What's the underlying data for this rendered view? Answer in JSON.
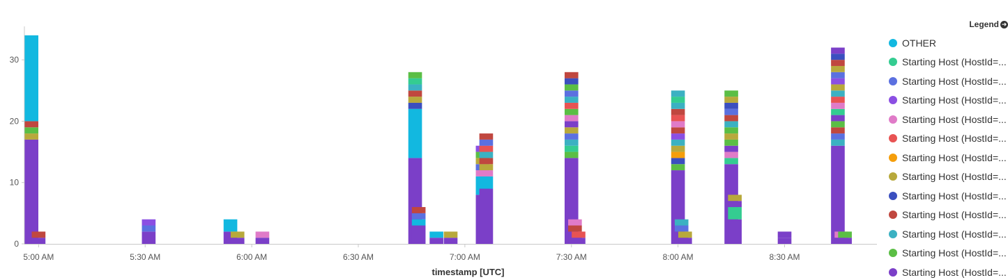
{
  "chart_data": {
    "type": "bar",
    "stacked": true,
    "xlabel": "timestamp [UTC]",
    "ylabel": "",
    "ylim": [
      0,
      35
    ],
    "yticks": [
      0,
      10,
      20,
      30
    ],
    "x_ticks": [
      {
        "label": "5:00 AM",
        "t": 300
      },
      {
        "label": "5:30 AM",
        "t": 330
      },
      {
        "label": "6:00 AM",
        "t": 360
      },
      {
        "label": "6:30 AM",
        "t": 390
      },
      {
        "label": "7:00 AM",
        "t": 420
      },
      {
        "label": "7:30 AM",
        "t": 450
      },
      {
        "label": "8:00 AM",
        "t": 480
      },
      {
        "label": "8:30 AM",
        "t": 510
      }
    ],
    "xlim": [
      296,
      536
    ],
    "grid": false,
    "legend_position": "right",
    "legend": {
      "title": "Legend",
      "items": [
        {
          "label": "OTHER",
          "color": "#12B8E0"
        },
        {
          "label": "Starting Host (HostId=...",
          "color": "#34CC91"
        },
        {
          "label": "Starting Host (HostId=...",
          "color": "#5B70E0"
        },
        {
          "label": "Starting Host (HostId=...",
          "color": "#8B4FE3"
        },
        {
          "label": "Starting Host (HostId=...",
          "color": "#E07BC8"
        },
        {
          "label": "Starting Host (HostId=...",
          "color": "#E85353"
        },
        {
          "label": "Starting Host (HostId=...",
          "color": "#F59E0B"
        },
        {
          "label": "Starting Host (HostId=...",
          "color": "#B8A93C"
        },
        {
          "label": "Starting Host (HostId=...",
          "color": "#3B4FBF"
        },
        {
          "label": "Starting Host (HostId=...",
          "color": "#C0473F"
        },
        {
          "label": "Starting Host (HostId=...",
          "color": "#3BB1C2"
        },
        {
          "label": "Starting Host (HostId=...",
          "color": "#5BBE45"
        },
        {
          "label": "Starting Host (HostId=...",
          "color": "#7B3FC8"
        }
      ]
    },
    "bars": [
      {
        "t": 298,
        "segments": [
          {
            "v": 17,
            "c": 12
          },
          {
            "v": 1,
            "c": 7
          },
          {
            "v": 1,
            "c": 11
          },
          {
            "v": 1,
            "c": 9
          },
          {
            "v": 14,
            "c": 0
          }
        ]
      },
      {
        "t": 300,
        "segments": [
          {
            "v": 1,
            "c": 12
          },
          {
            "v": 1,
            "c": 9
          }
        ]
      },
      {
        "t": 331,
        "segments": [
          {
            "v": 2,
            "c": 12
          },
          {
            "v": 1,
            "c": 2
          },
          {
            "v": 1,
            "c": 3
          }
        ]
      },
      {
        "t": 354,
        "segments": [
          {
            "v": 2,
            "c": 12
          },
          {
            "v": 2,
            "c": 0
          }
        ]
      },
      {
        "t": 356,
        "segments": [
          {
            "v": 1,
            "c": 12
          },
          {
            "v": 1,
            "c": 7
          }
        ]
      },
      {
        "t": 363,
        "segments": [
          {
            "v": 1,
            "c": 12
          },
          {
            "v": 1,
            "c": 4
          }
        ]
      },
      {
        "t": 406,
        "segments": [
          {
            "v": 14,
            "c": 12
          },
          {
            "v": 8,
            "c": 0
          },
          {
            "v": 1,
            "c": 8
          },
          {
            "v": 1,
            "c": 7
          },
          {
            "v": 1,
            "c": 9
          },
          {
            "v": 1,
            "c": 10
          },
          {
            "v": 1,
            "c": 1
          },
          {
            "v": 1,
            "c": 11
          }
        ]
      },
      {
        "t": 407,
        "segments": [
          {
            "v": 3,
            "c": 12
          },
          {
            "v": 1,
            "c": 0
          },
          {
            "v": 1,
            "c": 2
          },
          {
            "v": 1,
            "c": 9
          }
        ]
      },
      {
        "t": 412,
        "segments": [
          {
            "v": 1,
            "c": 12
          },
          {
            "v": 1,
            "c": 0
          }
        ]
      },
      {
        "t": 416,
        "segments": [
          {
            "v": 1,
            "c": 12
          },
          {
            "v": 1,
            "c": 7
          }
        ]
      },
      {
        "t": 425,
        "segments": [
          {
            "v": 8,
            "c": 12
          },
          {
            "v": 3,
            "c": 0
          },
          {
            "v": 1,
            "c": 4
          },
          {
            "v": 1,
            "c": 2
          },
          {
            "v": 1,
            "c": 7
          },
          {
            "v": 1,
            "c": 11
          },
          {
            "v": 1,
            "c": 3
          }
        ]
      },
      {
        "t": 426,
        "segments": [
          {
            "v": 9,
            "c": 12
          },
          {
            "v": 2,
            "c": 0
          },
          {
            "v": 1,
            "c": 4
          },
          {
            "v": 1,
            "c": 7
          },
          {
            "v": 1,
            "c": 9
          },
          {
            "v": 1,
            "c": 10
          },
          {
            "v": 1,
            "c": 5
          },
          {
            "v": 1,
            "c": 2
          },
          {
            "v": 1,
            "c": 9
          }
        ]
      },
      {
        "t": 450,
        "segments": [
          {
            "v": 14,
            "c": 12
          },
          {
            "v": 1,
            "c": 11
          },
          {
            "v": 1,
            "c": 1
          },
          {
            "v": 1,
            "c": 10
          },
          {
            "v": 1,
            "c": 2
          },
          {
            "v": 1,
            "c": 7
          },
          {
            "v": 1,
            "c": 12
          },
          {
            "v": 1,
            "c": 4
          },
          {
            "v": 1,
            "c": 11
          },
          {
            "v": 1,
            "c": 5
          },
          {
            "v": 1,
            "c": 10
          },
          {
            "v": 1,
            "c": 2
          },
          {
            "v": 1,
            "c": 11
          },
          {
            "v": 1,
            "c": 8
          },
          {
            "v": 1,
            "c": 9
          }
        ]
      },
      {
        "t": 451,
        "segments": [
          {
            "v": 2,
            "c": 12
          },
          {
            "v": 1,
            "c": 9
          },
          {
            "v": 1,
            "c": 4
          }
        ]
      },
      {
        "t": 452,
        "segments": [
          {
            "v": 1,
            "c": 12
          },
          {
            "v": 1,
            "c": 5
          }
        ]
      },
      {
        "t": 480,
        "segments": [
          {
            "v": 12,
            "c": 12
          },
          {
            "v": 1,
            "c": 11
          },
          {
            "v": 1,
            "c": 8
          },
          {
            "v": 1,
            "c": 6
          },
          {
            "v": 1,
            "c": 7
          },
          {
            "v": 1,
            "c": 10
          },
          {
            "v": 1,
            "c": 3
          },
          {
            "v": 1,
            "c": 9
          },
          {
            "v": 1,
            "c": 4
          },
          {
            "v": 1,
            "c": 5
          },
          {
            "v": 1,
            "c": 9
          },
          {
            "v": 1,
            "c": 10
          },
          {
            "v": 1,
            "c": 1
          },
          {
            "v": 1,
            "c": 10
          }
        ]
      },
      {
        "t": 481,
        "segments": [
          {
            "v": 2,
            "c": 12
          },
          {
            "v": 1,
            "c": 2
          },
          {
            "v": 1,
            "c": 10
          }
        ]
      },
      {
        "t": 482,
        "segments": [
          {
            "v": 1,
            "c": 12
          },
          {
            "v": 1,
            "c": 7
          }
        ]
      },
      {
        "t": 495,
        "segments": [
          {
            "v": 13,
            "c": 12
          },
          {
            "v": 1,
            "c": 1
          },
          {
            "v": 1,
            "c": 4
          },
          {
            "v": 1,
            "c": 12
          },
          {
            "v": 1,
            "c": 11
          },
          {
            "v": 1,
            "c": 7
          },
          {
            "v": 1,
            "c": 11
          },
          {
            "v": 1,
            "c": 10
          },
          {
            "v": 1,
            "c": 9
          },
          {
            "v": 1,
            "c": 2
          },
          {
            "v": 1,
            "c": 8
          },
          {
            "v": 1,
            "c": 7
          },
          {
            "v": 1,
            "c": 11
          }
        ]
      },
      {
        "t": 496,
        "segments": [
          {
            "v": 4,
            "c": 12
          },
          {
            "v": 2,
            "c": 1
          },
          {
            "v": 1,
            "c": 12
          },
          {
            "v": 1,
            "c": 7
          }
        ]
      },
      {
        "t": 510,
        "segments": [
          {
            "v": 1,
            "c": 12
          },
          {
            "v": 1,
            "c": 12
          }
        ]
      },
      {
        "t": 525,
        "segments": [
          {
            "v": 16,
            "c": 12
          },
          {
            "v": 1,
            "c": 10
          },
          {
            "v": 1,
            "c": 2
          },
          {
            "v": 1,
            "c": 9
          },
          {
            "v": 1,
            "c": 11
          },
          {
            "v": 1,
            "c": 12
          },
          {
            "v": 1,
            "c": 1
          },
          {
            "v": 1,
            "c": 4
          },
          {
            "v": 1,
            "c": 5
          },
          {
            "v": 1,
            "c": 10
          },
          {
            "v": 1,
            "c": 7
          },
          {
            "v": 1,
            "c": 3
          },
          {
            "v": 1,
            "c": 2
          },
          {
            "v": 1,
            "c": 7
          },
          {
            "v": 1,
            "c": 9
          },
          {
            "v": 1,
            "c": 8
          },
          {
            "v": 1,
            "c": 12
          }
        ]
      },
      {
        "t": 526,
        "segments": [
          {
            "v": 1,
            "c": 12
          },
          {
            "v": 1,
            "c": 4
          }
        ]
      },
      {
        "t": 527,
        "segments": [
          {
            "v": 1,
            "c": 12
          },
          {
            "v": 1,
            "c": 11
          }
        ]
      }
    ]
  }
}
